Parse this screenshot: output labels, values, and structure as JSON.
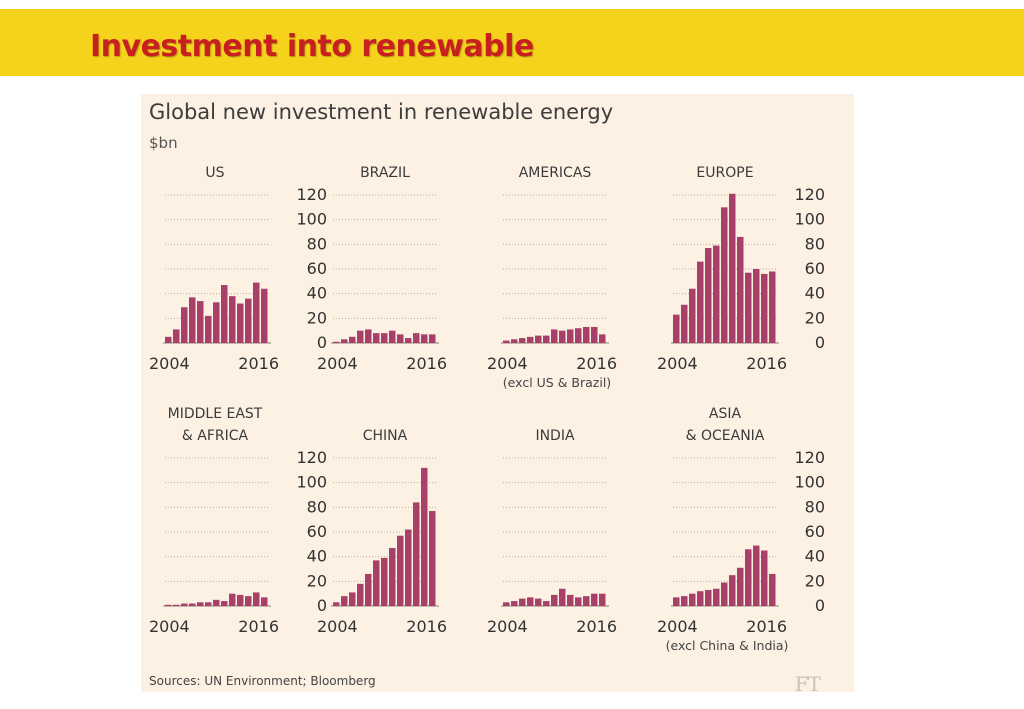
{
  "slide": {
    "title": "Investment into renewable"
  },
  "figure": {
    "title": "Global new investment in renewable energy",
    "unit": "$bn",
    "source": "Sources: UN Environment; Bloomberg",
    "logo": "FT"
  },
  "colors": {
    "banner": "#f5d21c",
    "title": "#c8201e",
    "bar": "#a8406a",
    "panel_bg": "#fdf1e4"
  },
  "chart_data": [
    {
      "type": "bar",
      "title": "US",
      "subtitle": "",
      "x": [
        2004,
        2005,
        2006,
        2007,
        2008,
        2009,
        2010,
        2011,
        2012,
        2013,
        2014,
        2015,
        2016
      ],
      "values": [
        5,
        11,
        29,
        37,
        34,
        22,
        33,
        47,
        38,
        32,
        36,
        49,
        44
      ],
      "ylim": [
        0,
        120
      ],
      "yticks": [
        0,
        20,
        40,
        60,
        80,
        100,
        120
      ],
      "xtick_labels": [
        "2004",
        "2016"
      ],
      "ytick_side": "right"
    },
    {
      "type": "bar",
      "title": "BRAZIL",
      "subtitle": "",
      "x": [
        2004,
        2005,
        2006,
        2007,
        2008,
        2009,
        2010,
        2011,
        2012,
        2013,
        2014,
        2015,
        2016
      ],
      "values": [
        1,
        3,
        5,
        10,
        11,
        8,
        8,
        10,
        7,
        4,
        8,
        7,
        7
      ],
      "ylim": [
        0,
        120
      ],
      "xtick_labels": [
        "2004",
        "2016"
      ]
    },
    {
      "type": "bar",
      "title": "AMERICAS",
      "subtitle": "(excl US & Brazil)",
      "x": [
        2004,
        2005,
        2006,
        2007,
        2008,
        2009,
        2010,
        2011,
        2012,
        2013,
        2014,
        2015,
        2016
      ],
      "values": [
        2,
        3,
        4,
        5,
        6,
        6,
        11,
        10,
        11,
        12,
        13,
        13,
        7
      ],
      "ylim": [
        0,
        120
      ],
      "xtick_labels": [
        "2004",
        "2016"
      ]
    },
    {
      "type": "bar",
      "title": "EUROPE",
      "subtitle": "",
      "x": [
        2004,
        2005,
        2006,
        2007,
        2008,
        2009,
        2010,
        2011,
        2012,
        2013,
        2014,
        2015,
        2016
      ],
      "values": [
        23,
        31,
        44,
        66,
        77,
        79,
        110,
        121,
        86,
        57,
        60,
        56,
        58
      ],
      "ylim": [
        0,
        120
      ],
      "yticks": [
        0,
        20,
        40,
        60,
        80,
        100,
        120
      ],
      "xtick_labels": [
        "2004",
        "2016"
      ],
      "ytick_side": "right"
    },
    {
      "type": "bar",
      "title": "MIDDLE EAST & AFRICA",
      "subtitle": "",
      "x": [
        2004,
        2005,
        2006,
        2007,
        2008,
        2009,
        2010,
        2011,
        2012,
        2013,
        2014,
        2015,
        2016
      ],
      "values": [
        1,
        1,
        2,
        2,
        3,
        3,
        5,
        4,
        10,
        9,
        8,
        11,
        7
      ],
      "ylim": [
        0,
        120
      ],
      "yticks": [
        0,
        20,
        40,
        60,
        80,
        100,
        120
      ],
      "xtick_labels": [
        "2004",
        "2016"
      ],
      "ytick_side": "right"
    },
    {
      "type": "bar",
      "title": "CHINA",
      "subtitle": "",
      "x": [
        2004,
        2005,
        2006,
        2007,
        2008,
        2009,
        2010,
        2011,
        2012,
        2013,
        2014,
        2015,
        2016
      ],
      "values": [
        3,
        8,
        11,
        18,
        26,
        37,
        39,
        47,
        57,
        62,
        84,
        112,
        77
      ],
      "ylim": [
        0,
        120
      ],
      "xtick_labels": [
        "2004",
        "2016"
      ]
    },
    {
      "type": "bar",
      "title": "INDIA",
      "subtitle": "",
      "x": [
        2004,
        2005,
        2006,
        2007,
        2008,
        2009,
        2010,
        2011,
        2012,
        2013,
        2014,
        2015,
        2016
      ],
      "values": [
        3,
        4,
        6,
        7,
        6,
        4,
        9,
        14,
        9,
        7,
        8,
        10,
        10
      ],
      "ylim": [
        0,
        120
      ],
      "xtick_labels": [
        "2004",
        "2016"
      ]
    },
    {
      "type": "bar",
      "title": "ASIA & OCEANIA",
      "subtitle": "(excl China & India)",
      "x": [
        2004,
        2005,
        2006,
        2007,
        2008,
        2009,
        2010,
        2011,
        2012,
        2013,
        2014,
        2015,
        2016
      ],
      "values": [
        7,
        8,
        10,
        12,
        13,
        14,
        19,
        25,
        31,
        46,
        49,
        45,
        26
      ],
      "ylim": [
        0,
        120
      ],
      "yticks": [
        0,
        20,
        40,
        60,
        80,
        100,
        120
      ],
      "xtick_labels": [
        "2004",
        "2016"
      ],
      "ytick_side": "right"
    }
  ]
}
